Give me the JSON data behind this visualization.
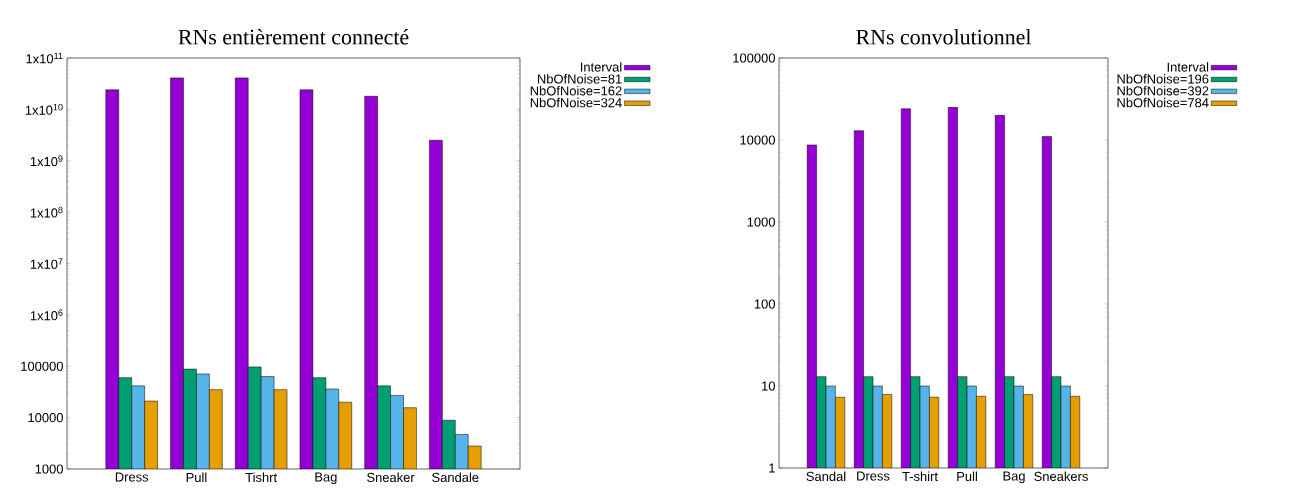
{
  "chart_data": [
    {
      "type": "bar",
      "title": "RNs entièrement connecté",
      "categories": [
        "Dress",
        "Pull",
        "Tishrt",
        "Bag",
        "Sneaker",
        "Sandale"
      ],
      "log": true,
      "ylim": [
        1000,
        100000000000
      ],
      "yticks": [
        1000,
        10000,
        100000,
        {
          "value": 1000000,
          "label": "1x10$^{6}$"
        },
        {
          "value": 10000000,
          "label": "1x10$^{7}$"
        },
        {
          "value": 100000000,
          "label": "1x10$^{8}$"
        },
        {
          "value": 1000000000,
          "label": "1x10$^{9}$"
        },
        {
          "value": 10000000000,
          "label": "1x10$^{10}$"
        },
        {
          "value": 100000000000,
          "label": "1x10$^{11}$"
        }
      ],
      "legend": "top right",
      "series": [
        {
          "name": "Interval",
          "color": "#9400d3",
          "values": [
            24000000000,
            41000000000,
            41000000000,
            24000000000,
            18000000000,
            2500000000
          ]
        },
        {
          "name": "NbOfNoise=81",
          "color": "#009e73",
          "values": [
            60000,
            88000,
            97000,
            60000,
            41500,
            8900
          ]
        },
        {
          "name": "NbOfNoise=162",
          "color": "#56b4e9",
          "values": [
            41500,
            71000,
            63000,
            36000,
            27000,
            4700
          ]
        },
        {
          "name": "NbOfNoise=324",
          "color": "#e69f00",
          "values": [
            21000,
            35000,
            35000,
            20000,
            15600,
            2800
          ]
        }
      ]
    },
    {
      "type": "bar",
      "title": "RNs convolutionnel",
      "categories": [
        "Sandal",
        "Dress",
        "T-shirt",
        "Pull",
        "Bag",
        "Sneakers"
      ],
      "log": true,
      "ylim": [
        1,
        100000
      ],
      "yticks": [
        1,
        10,
        100,
        1000,
        10000,
        100000
      ],
      "legend": "top right",
      "series": [
        {
          "name": "Interval",
          "color": "#9400d3",
          "values": [
            8700,
            13000,
            24000,
            25000,
            20000,
            11000
          ]
        },
        {
          "name": "NbOfNoise=196",
          "color": "#009e73",
          "values": [
            13,
            13,
            13,
            13,
            13,
            13
          ]
        },
        {
          "name": "NbOfNoise=392",
          "color": "#56b4e9",
          "values": [
            10,
            10,
            10,
            10,
            10,
            10
          ]
        },
        {
          "name": "NbOfNoise=784",
          "color": "#e69f00",
          "values": [
            7.3,
            7.9,
            7.3,
            7.5,
            7.9,
            7.5
          ]
        }
      ]
    }
  ]
}
